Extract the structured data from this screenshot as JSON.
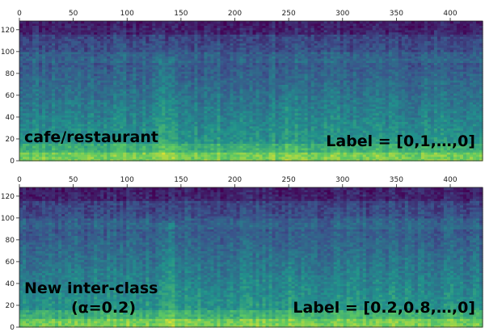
{
  "chart_data": [
    {
      "type": "heatmap",
      "title": "",
      "xlabel": "",
      "ylabel": "",
      "xlim": [
        0,
        430
      ],
      "ylim": [
        0,
        128
      ],
      "x_ticks": [
        0,
        50,
        100,
        150,
        200,
        250,
        300,
        350,
        400
      ],
      "y_ticks": [
        0,
        20,
        40,
        60,
        80,
        100,
        120
      ],
      "colormap": "viridis",
      "annotations": [
        {
          "text": "cafe/restaurant",
          "position": "bottom-left"
        },
        {
          "text": "Label = [0,1,…,0]",
          "position": "bottom-right"
        }
      ]
    },
    {
      "type": "heatmap",
      "title": "",
      "xlabel": "",
      "ylabel": "",
      "xlim": [
        0,
        430
      ],
      "ylim": [
        0,
        128
      ],
      "x_ticks": [
        0,
        50,
        100,
        150,
        200,
        250,
        300,
        350,
        400
      ],
      "y_ticks": [
        0,
        20,
        40,
        60,
        80,
        100,
        120
      ],
      "colormap": "viridis",
      "annotations": [
        {
          "text": "New inter-class",
          "position": "bottom-left"
        },
        {
          "text": "(α=0.2)",
          "position": "bottom-left"
        },
        {
          "text": "Label = [0.2,0.8,…,0]",
          "position": "bottom-right"
        }
      ]
    }
  ],
  "colors": {
    "viridis_dark": "#34195e",
    "viridis_mid": "#2a8c8c",
    "viridis_light": "#b9dc3a",
    "viridis_bright": "#f0e52a"
  }
}
